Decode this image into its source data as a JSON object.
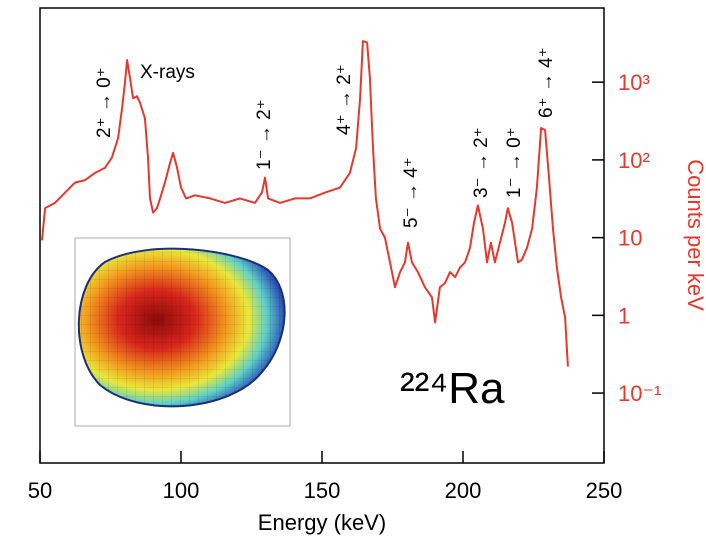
{
  "chart_data": {
    "type": "line",
    "x_label": "Energy (keV)",
    "y_label": "Counts per keV",
    "xlim": [
      50,
      250
    ],
    "xticks": [
      50,
      100,
      150,
      200,
      250
    ],
    "ylim": [
      0.0126,
      9000
    ],
    "yscale": "log",
    "yaxis_side": "right",
    "yticks": [
      {
        "value": 0.1,
        "label": "10⁻¹"
      },
      1,
      10,
      {
        "value": 100,
        "label": "10²"
      },
      {
        "value": 1000,
        "label": "10³"
      }
    ],
    "annotations": [
      "2⁺ → 0⁺",
      "X-rays",
      "1⁻ → 2⁺",
      "4⁺ → 2⁺",
      "5⁻ → 4⁺",
      "3⁻ → 2⁺",
      "1⁻ → 0⁺",
      "6⁺ → 4⁺",
      "²²⁴Ra"
    ],
    "series": [
      {
        "color": "#e8372c",
        "x": [
          50.7,
          51.8,
          55.3,
          58.9,
          62.4,
          66.0,
          69.5,
          73.0,
          75.5,
          77.7,
          79.1,
          80.1,
          80.9,
          81.9,
          83.0,
          84.4,
          85.5,
          87.2,
          88.3,
          89.0,
          90.1,
          91.5,
          92.6,
          94.3,
          96.1,
          97.2,
          98.6,
          100.0,
          101.8,
          105.0,
          110.3,
          115.6,
          120.9,
          126.2,
          128.7,
          129.8,
          130.9,
          135.1,
          140.4,
          145.7,
          151.1,
          156.4,
          159.9,
          162.1,
          163.5,
          164.5,
          166.0,
          167.0,
          168.1,
          169.1,
          170.6,
          172.3,
          174.1,
          175.9,
          177.7,
          179.4,
          180.5,
          181.9,
          184.0,
          186.5,
          189.0,
          190.1,
          191.8,
          193.6,
          195.4,
          197.2,
          198.9,
          200.7,
          202.5,
          203.9,
          205.3,
          207.1,
          208.5,
          209.9,
          211.3,
          213.1,
          214.9,
          215.9,
          217.4,
          219.5,
          220.9,
          222.7,
          224.5,
          226.2,
          227.7,
          229.1,
          230.5,
          231.9,
          233.3,
          234.8,
          236.2,
          237.2
        ],
        "values": [
          9.2,
          24,
          28,
          38,
          51,
          55,
          68,
          79,
          107,
          191,
          465,
          970,
          1920,
          1130,
          620,
          660,
          540,
          345,
          107,
          32,
          21,
          24,
          32,
          51,
          91,
          123,
          79,
          44,
          32,
          35,
          32,
          28,
          32,
          28,
          38,
          59,
          32,
          28,
          32,
          32,
          38,
          44,
          68,
          142,
          620,
          3380,
          3240,
          1130,
          142,
          32,
          13,
          10,
          4.8,
          2.3,
          3.6,
          4.8,
          8.6,
          4.8,
          3.6,
          2.3,
          1.7,
          0.81,
          2.3,
          2.6,
          3.6,
          3.1,
          4.1,
          4.8,
          7.4,
          15.5,
          26,
          13,
          4.8,
          8.6,
          4.8,
          8.6,
          15.5,
          24,
          15.5,
          4.8,
          5.2,
          7.4,
          13,
          44,
          257,
          242,
          59,
          13,
          4.1,
          1.7,
          0.94,
          0.22
        ]
      }
    ]
  }
}
